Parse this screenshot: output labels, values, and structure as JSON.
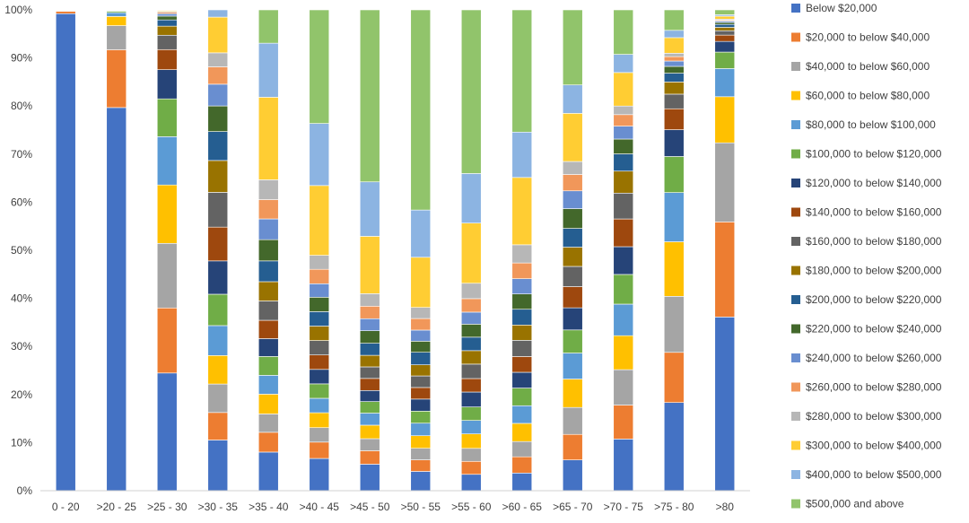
{
  "chart_data": {
    "type": "bar",
    "stacked": true,
    "percent_stacked": true,
    "title": "",
    "xlabel": "",
    "ylabel": "",
    "ylim": [
      0,
      100
    ],
    "y_ticks": [
      "0%",
      "10%",
      "20%",
      "30%",
      "40%",
      "50%",
      "60%",
      "70%",
      "80%",
      "90%",
      "100%"
    ],
    "grid": false,
    "legend_position": "right",
    "categories": [
      "0 - 20",
      ">20 - 25",
      ">25 - 30",
      ">30 - 35",
      ">35 - 40",
      ">40 - 45",
      ">45 - 50",
      ">50 - 55",
      ">55 - 60",
      ">60 - 65",
      ">65 - 70",
      ">70 - 75",
      ">75 - 80",
      ">80"
    ],
    "series": [
      {
        "name": "Below $20,000",
        "color": "#4472C4",
        "values": [
          99.2,
          79.5,
          24.6,
          10.5,
          8.0,
          6.7,
          5.5,
          4.0,
          3.4,
          3.7,
          6.4,
          10.8,
          18.1,
          35.8
        ]
      },
      {
        "name": "$20,000 to below $40,000",
        "color": "#ED7D31",
        "values": [
          0.5,
          12.0,
          13.6,
          5.7,
          4.1,
          3.4,
          2.8,
          2.4,
          2.7,
          3.4,
          5.3,
          7.1,
          10.3,
          19.6
        ]
      },
      {
        "name": "$40,000 to below $60,000",
        "color": "#A5A5A5",
        "values": [
          0.1,
          5.0,
          13.5,
          5.9,
          3.8,
          3.0,
          2.5,
          2.4,
          2.7,
          3.2,
          5.6,
          7.4,
          11.5,
          16.3
        ]
      },
      {
        "name": "$60,000 to below $80,000",
        "color": "#FFC000",
        "values": [
          0.05,
          1.9,
          12.2,
          5.9,
          4.1,
          3.1,
          2.8,
          2.6,
          3.0,
          3.8,
          5.9,
          7.1,
          11.2,
          9.5
        ]
      },
      {
        "name": "$80,000 to below $100,000",
        "color": "#5B9BD5",
        "values": [
          0.05,
          0.8,
          10.1,
          6.2,
          3.9,
          3.0,
          2.5,
          2.6,
          2.8,
          3.7,
          5.4,
          6.6,
          10.1,
          5.8
        ]
      },
      {
        "name": "$100,000 to below $120,000",
        "color": "#70AD47",
        "values": [
          0.05,
          0.3,
          7.9,
          6.5,
          3.9,
          3.0,
          2.4,
          2.5,
          2.8,
          3.7,
          4.8,
          6.2,
          7.4,
          3.4
        ]
      },
      {
        "name": "$120,000 to below $140,000",
        "color": "#264478",
        "values": [
          0.02,
          0.1,
          6.1,
          6.9,
          3.7,
          3.0,
          2.3,
          2.5,
          3.1,
          3.3,
          4.6,
          5.8,
          5.5,
          2.2
        ]
      },
      {
        "name": "$140,000 to below $160,000",
        "color": "#9E480E",
        "values": [
          0.01,
          0.06,
          4.2,
          7.0,
          3.8,
          3.0,
          2.5,
          2.4,
          2.8,
          3.3,
          4.4,
          5.8,
          4.3,
          1.3
        ]
      },
      {
        "name": "$160,000 to below $180,000",
        "color": "#636363",
        "values": [
          0.01,
          0.04,
          3.0,
          7.2,
          4.0,
          3.0,
          2.4,
          2.4,
          3.0,
          3.4,
          4.2,
          5.4,
          3.0,
          0.9
        ]
      },
      {
        "name": "$180,000 to below $200,000",
        "color": "#997300",
        "values": [
          0.0,
          0.03,
          1.9,
          6.6,
          4.0,
          3.0,
          2.4,
          2.3,
          2.8,
          3.2,
          4.0,
          4.6,
          2.5,
          0.7
        ]
      },
      {
        "name": "$200,000 to below $220,000",
        "color": "#255E91",
        "values": [
          0.0,
          0.02,
          1.3,
          6.0,
          4.3,
          3.0,
          2.5,
          2.6,
          2.8,
          3.3,
          3.9,
          3.6,
          1.8,
          0.6
        ]
      },
      {
        "name": "$220,000 to below $240,000",
        "color": "#43682B",
        "values": [
          0.0,
          0.01,
          0.8,
          5.3,
          4.4,
          3.0,
          2.6,
          2.3,
          2.7,
          3.2,
          4.1,
          3.1,
          1.4,
          0.4
        ]
      },
      {
        "name": "$240,000 to below $260,000",
        "color": "#698ED0",
        "values": [
          0.0,
          0.01,
          0.5,
          4.5,
          4.3,
          2.8,
          2.5,
          2.3,
          2.5,
          3.2,
          3.7,
          2.7,
          1.1,
          0.3
        ]
      },
      {
        "name": "$260,000 to below $280,000",
        "color": "#F1975A",
        "values": [
          0.0,
          0.0,
          0.3,
          3.6,
          4.0,
          3.0,
          2.6,
          2.4,
          2.8,
          3.3,
          3.4,
          2.4,
          0.9,
          0.2
        ]
      },
      {
        "name": "$280,000 to below $300,000",
        "color": "#B7B7B7",
        "values": [
          0.0,
          0.0,
          0.2,
          2.9,
          4.1,
          2.9,
          2.6,
          2.3,
          3.2,
          3.8,
          2.7,
          1.8,
          0.7,
          0.2
        ]
      },
      {
        "name": "$300,000 to below $400,000",
        "color": "#FFCD33",
        "values": [
          0.0,
          0.0,
          0.2,
          7.4,
          17.1,
          14.5,
          11.9,
          10.4,
          12.5,
          14.1,
          10.0,
          7.0,
          3.2,
          0.6
        ]
      },
      {
        "name": "$400,000 to below $500,000",
        "color": "#8CB4E2",
        "values": [
          0.0,
          0.0,
          0.1,
          1.5,
          11.2,
          12.9,
          11.3,
          9.8,
          10.3,
          9.5,
          5.9,
          3.8,
          1.5,
          0.3
        ]
      },
      {
        "name": "$500,000 and above",
        "color": "#91C46B",
        "values": [
          0.0,
          0.0,
          0.0,
          0.0,
          6.9,
          23.6,
          35.7,
          41.5,
          34.0,
          25.6,
          15.6,
          9.3,
          4.2,
          1.0
        ]
      }
    ]
  }
}
